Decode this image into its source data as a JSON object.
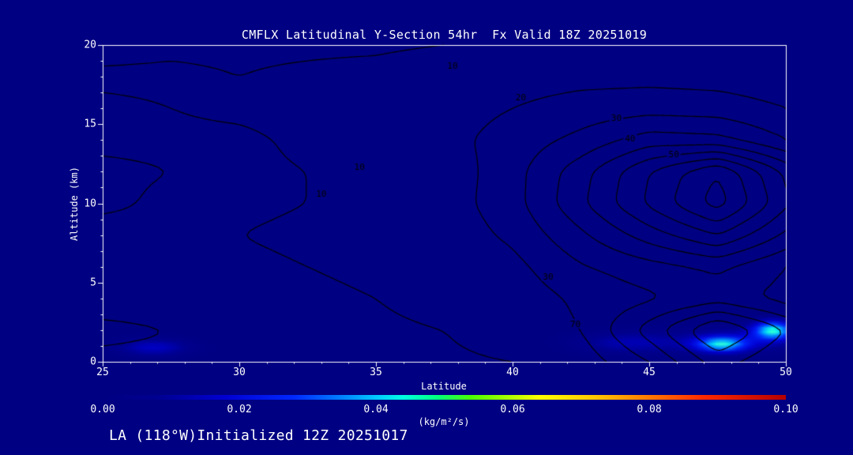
{
  "page": {
    "bg": "#000082",
    "fg": "#ffffff",
    "contour_color": "#000000"
  },
  "chart_data": {
    "type": "contour",
    "title": "CMFLX Latitudinal Y-Section 54hr  Fx Valid 18Z 20251019",
    "xlabel": "Latitude",
    "ylabel": "Altitude (km)",
    "xlim": [
      25,
      50
    ],
    "ylim": [
      0,
      20
    ],
    "x_ticks": [
      25,
      30,
      35,
      40,
      45,
      50
    ],
    "y_ticks": [
      0,
      5,
      10,
      15,
      20
    ],
    "grid_on": false,
    "legend": "none",
    "contours": {
      "levels": [
        10,
        20,
        30,
        40,
        50,
        60,
        70,
        80,
        90
      ],
      "grid": {
        "lats": [
          25,
          27.5,
          30,
          32.5,
          35,
          37.5,
          40,
          42.5,
          45,
          47.5,
          50
        ],
        "alts": [
          20,
          18,
          16,
          14,
          12,
          10,
          8,
          6,
          4,
          2,
          0
        ],
        "values": [
          [
            8,
            9,
            9,
            9,
            9,
            10,
            11,
            12,
            12,
            12,
            11
          ],
          [
            11,
            11,
            10,
            11,
            12,
            14,
            16,
            17,
            17,
            16,
            14
          ],
          [
            9,
            10,
            11,
            12,
            13,
            16,
            20,
            24,
            26,
            25,
            20
          ],
          [
            9,
            9,
            9,
            11,
            13,
            17,
            24,
            33,
            45,
            43,
            30
          ],
          [
            11,
            10,
            9,
            10,
            12,
            14,
            26,
            46,
            70,
            90,
            58
          ],
          [
            11,
            9,
            9,
            10,
            12,
            15,
            26,
            48,
            72,
            95,
            62
          ],
          [
            8,
            9,
            10,
            11,
            12,
            14,
            22,
            38,
            55,
            70,
            48
          ],
          [
            9,
            9,
            9,
            10,
            11,
            13,
            17,
            29,
            36,
            42,
            30
          ],
          [
            8,
            8,
            9,
            9,
            10,
            12,
            14,
            22,
            28,
            35,
            26
          ],
          [
            11,
            10,
            9,
            9,
            9,
            10,
            13,
            20,
            45,
            72,
            50
          ],
          [
            9,
            9,
            8,
            8,
            8,
            9,
            10,
            14,
            30,
            55,
            40
          ]
        ]
      },
      "labels": [
        {
          "text": "10",
          "lat": 37.8,
          "alt": 18.7
        },
        {
          "text": "20",
          "lat": 40.3,
          "alt": 16.7
        },
        {
          "text": "30",
          "lat": 43.8,
          "alt": 15.4
        },
        {
          "text": "40",
          "lat": 44.3,
          "alt": 14.1
        },
        {
          "text": "50",
          "lat": 45.9,
          "alt": 13.1
        },
        {
          "text": "10",
          "lat": 34.4,
          "alt": 12.3
        },
        {
          "text": "10",
          "lat": 33.0,
          "alt": 10.6
        },
        {
          "text": "30",
          "lat": 41.3,
          "alt": 5.4
        },
        {
          "text": "70",
          "lat": 42.3,
          "alt": 2.4
        }
      ]
    },
    "shading": {
      "units_label": "(kg/m²/s)",
      "range": [
        0,
        0.1
      ],
      "colormap": [
        [
          0.0,
          "#000082"
        ],
        [
          0.08,
          "#000090"
        ],
        [
          0.18,
          "#0000d2"
        ],
        [
          0.28,
          "#0028ff"
        ],
        [
          0.35,
          "#0082ff"
        ],
        [
          0.4,
          "#00c8ff"
        ],
        [
          0.44,
          "#00ffe1"
        ],
        [
          0.49,
          "#00ff7d"
        ],
        [
          0.54,
          "#4bff00"
        ],
        [
          0.6,
          "#b4ff00"
        ],
        [
          0.64,
          "#ffff00"
        ],
        [
          0.72,
          "#ffc800"
        ],
        [
          0.8,
          "#ff7800"
        ],
        [
          0.88,
          "#ff2800"
        ],
        [
          1.0,
          "#b40000"
        ]
      ],
      "bumps": [
        {
          "lat": 26.8,
          "alt": 0.8,
          "sx": 1.4,
          "sy": 0.55,
          "amp": 0.016
        },
        {
          "lat": 44.3,
          "alt": 1.1,
          "sx": 2.0,
          "sy": 0.7,
          "amp": 0.013
        },
        {
          "lat": 47.7,
          "alt": 1.0,
          "sx": 1.0,
          "sy": 0.5,
          "amp": 0.036
        },
        {
          "lat": 49.6,
          "alt": 1.9,
          "sx": 0.75,
          "sy": 0.6,
          "amp": 0.04
        },
        {
          "lat": 48.5,
          "alt": 1.3,
          "sx": 2.6,
          "sy": 1.0,
          "amp": 0.01
        }
      ]
    },
    "colorbar_ticks": [
      "0.00",
      "0.02",
      "0.04",
      "0.06",
      "0.08",
      "0.10"
    ]
  },
  "footer": {
    "text": "LA (118°W)Initialized 12Z 20251017"
  }
}
